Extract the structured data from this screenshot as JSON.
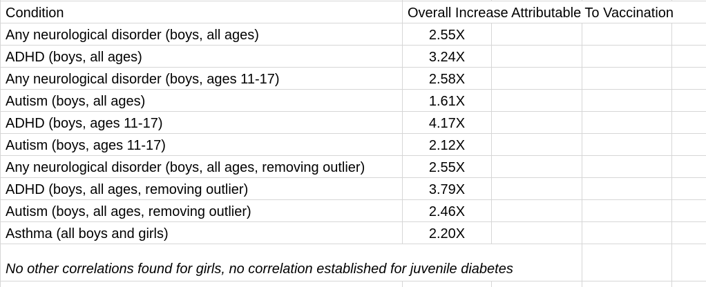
{
  "table": {
    "header": {
      "condition": "Condition",
      "value": "Overall Increase Attributable To Vaccination"
    },
    "rows": [
      {
        "condition": "Any neurological disorder (boys, all ages)",
        "value": "2.55X"
      },
      {
        "condition": "ADHD (boys, all ages)",
        "value": "3.24X"
      },
      {
        "condition": "Any neurological disorder (boys, ages 11-17)",
        "value": "2.58X"
      },
      {
        "condition": "Autism (boys, all ages)",
        "value": "1.61X"
      },
      {
        "condition": "ADHD (boys, ages 11-17)",
        "value": "4.17X"
      },
      {
        "condition": "Autism (boys, ages 11-17)",
        "value": "2.12X"
      },
      {
        "condition": "Any neurological disorder (boys, all ages, removing outlier)",
        "value": "2.55X"
      },
      {
        "condition": "ADHD (boys, all ages, removing outlier)",
        "value": "3.79X"
      },
      {
        "condition": "Autism (boys, all ages, removing outlier)",
        "value": "2.46X"
      },
      {
        "condition": "Asthma (all boys and girls)",
        "value": "2.20X"
      }
    ],
    "note": "No other correlations found for girls, no correlation established for juvenile diabetes"
  },
  "colors": {
    "gridline": "#d6d6d6",
    "text": "#000000",
    "background": "#ffffff"
  }
}
